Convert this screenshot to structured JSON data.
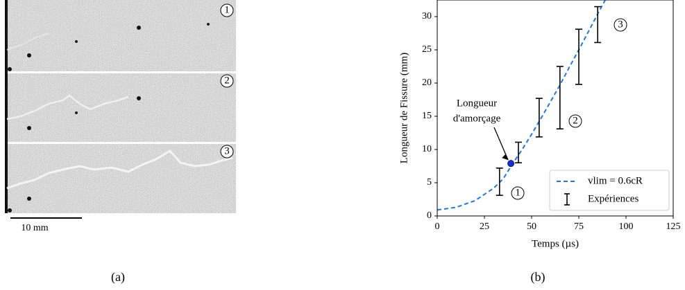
{
  "figure": {
    "panel_labels": [
      "(a)",
      "(b)"
    ],
    "scale_bar": "10 mm",
    "image_labels": [
      "1",
      "2",
      "3"
    ]
  },
  "chart_data": {
    "type": "line",
    "x_label": "Temps (µs)",
    "y_label": "Longueur de Fissure (mm)",
    "xlim": [
      0,
      125
    ],
    "xticks": [
      0,
      25,
      50,
      75,
      100,
      125
    ],
    "ylim": [
      0,
      32.5
    ],
    "yticks": [
      0,
      5,
      10,
      15,
      20,
      25,
      30
    ],
    "legend": "lower right",
    "series": [
      {
        "name": "vlim = 0.6cR",
        "color": "#1f77e4",
        "dashed": true,
        "x": [
          0,
          10,
          20,
          30,
          35,
          40,
          45,
          50,
          55,
          60,
          65,
          70,
          75,
          80,
          85,
          89
        ],
        "values": [
          0.9,
          1.3,
          2.3,
          4.2,
          5.6,
          7.9,
          10,
          12.3,
          14.7,
          17.2,
          19.7,
          22.4,
          25,
          27.7,
          30.4,
          32.5
        ]
      },
      {
        "name": "Expériences",
        "type": "errorbar",
        "color": "#000000",
        "x": [
          33,
          43,
          54,
          65,
          75,
          85
        ],
        "lower": [
          3.1,
          8,
          11.9,
          13.1,
          19.8,
          26.1
        ],
        "upper": [
          7.2,
          11.1,
          17.7,
          22.5,
          28.1,
          31.5
        ]
      }
    ],
    "point": {
      "x": 39,
      "y": 7.9,
      "color": "#1a2fd0"
    },
    "annotation": [
      "Longueur",
      "d'amorçage"
    ],
    "markers": [
      "1",
      "2",
      "3"
    ]
  }
}
